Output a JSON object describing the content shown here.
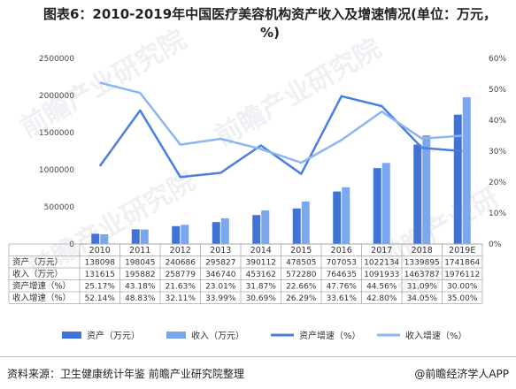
{
  "title": "图表6：2010-2019年中国医疗美容机构资产收入及增速情况(单位：万元，%)",
  "source": "资料来源：卫生健康统计年鉴 前瞻产业研究院整理",
  "brand": "@前瞻经济学人APP",
  "watermarks": [
    "前瞻产业研究院",
    "前瞻产业研究院",
    "前瞻产业研究院",
    "前瞻产业研究院"
  ],
  "chart_data": {
    "type": "bar",
    "categories": [
      "2010",
      "2011",
      "2012",
      "2013",
      "2014",
      "2015",
      "2016",
      "2017",
      "2018",
      "2019E"
    ],
    "left_axis": {
      "ylim": [
        0,
        2500000
      ],
      "ticks": [
        "0",
        "500000",
        "1000000",
        "1500000",
        "2000000",
        "2500000"
      ]
    },
    "right_axis": {
      "ylim": [
        0,
        60
      ],
      "ticks": [
        "0%",
        "10%",
        "20%",
        "30%",
        "40%",
        "50%",
        "60%"
      ]
    },
    "series": [
      {
        "name": "资产（万元）",
        "type": "bar",
        "axis": "left",
        "color": "#3f74d6",
        "values": [
          138098,
          198045,
          240686,
          295827,
          390112,
          478505,
          707053,
          1022134,
          1339895,
          1741864
        ],
        "labels": [
          "138098",
          "198045",
          "240686",
          "295827",
          "390112",
          "478505",
          "707053",
          "1022134",
          "1339895",
          "1741864"
        ]
      },
      {
        "name": "收入（万元）",
        "type": "bar",
        "axis": "left",
        "color": "#7aa7ee",
        "values": [
          131615,
          195882,
          258779,
          346740,
          453162,
          572280,
          764635,
          1091933,
          1463787,
          1976112
        ],
        "labels": [
          "131615",
          "195882",
          "258779",
          "346740",
          "453162",
          "572280",
          "764635",
          "1091933",
          "1463787",
          "1976112"
        ]
      },
      {
        "name": "资产增速（%）",
        "type": "line",
        "axis": "right",
        "color": "#4a7fe0",
        "values": [
          25.17,
          43.18,
          21.63,
          23.01,
          31.87,
          22.66,
          47.76,
          44.56,
          31.09,
          30.0
        ],
        "labels": [
          "25.17%",
          "43.18%",
          "21.63%",
          "23.01%",
          "31.87%",
          "22.66%",
          "47.76%",
          "44.56%",
          "31.09%",
          "30.00%"
        ]
      },
      {
        "name": "收入增速（%）",
        "type": "line",
        "axis": "right",
        "color": "#8cb6f2",
        "values": [
          52.14,
          48.83,
          32.11,
          33.99,
          30.69,
          26.29,
          33.61,
          42.8,
          34.05,
          35.0
        ],
        "labels": [
          "52.14%",
          "48.83%",
          "32.11%",
          "33.99%",
          "30.69%",
          "26.29%",
          "33.61%",
          "42.80%",
          "34.05%",
          "35.00%"
        ]
      }
    ],
    "table_row_labels": [
      "资产（万元）",
      "收入（万元）",
      "资产增速（%）",
      "收入增速（%）"
    ],
    "legend": [
      {
        "name": "资产（万元）",
        "kind": "bar",
        "color": "#3f74d6"
      },
      {
        "name": "收入（万元）",
        "kind": "bar",
        "color": "#7aa7ee"
      },
      {
        "name": "资产增速（%）",
        "kind": "line",
        "color": "#4a7fe0"
      },
      {
        "name": "收入增速（%）",
        "kind": "line",
        "color": "#8cb6f2"
      }
    ],
    "grid": false,
    "legend_position": "bottom"
  }
}
